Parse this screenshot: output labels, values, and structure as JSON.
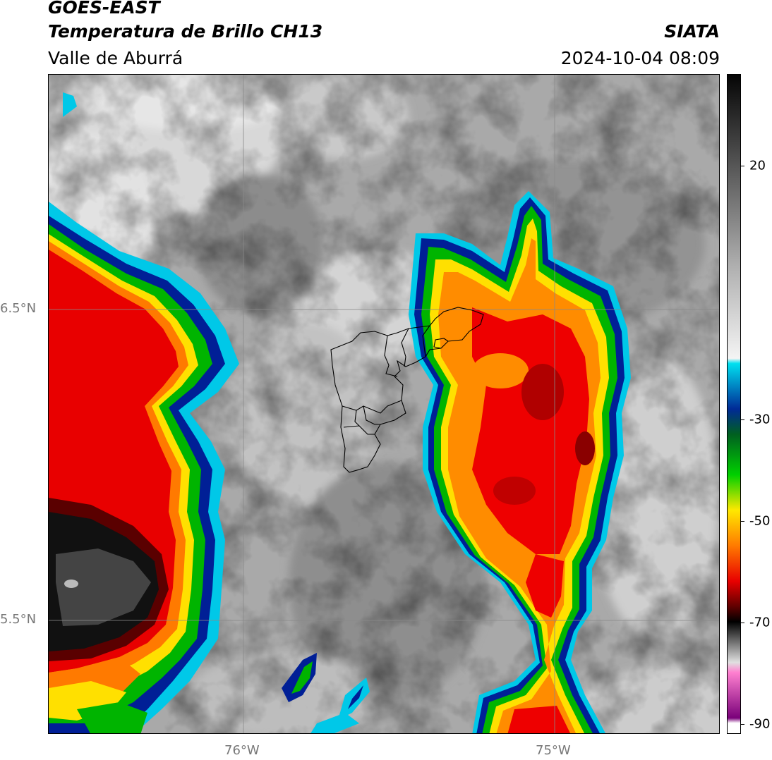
{
  "header": {
    "title_line1": "GOES-EAST",
    "title_line2": "Temperatura de Brillo CH13",
    "region": "Valle de Aburrá",
    "source": "SIATA",
    "datetime": "2024-10-04 08:09"
  },
  "map": {
    "lat_labels": [
      "6.5°N",
      "5.5°N"
    ],
    "lon_labels": [
      "76°W",
      "75°W"
    ],
    "lat_values": [
      6.5,
      5.5
    ],
    "lon_values": [
      -76,
      -75
    ],
    "extent": {
      "lon_min": -76.63,
      "lon_max": -74.47,
      "lat_min": 5.13,
      "lat_max": 7.25
    },
    "base_color": "#a8a8a8",
    "cold_cloud_colors": [
      "#00c8e8",
      "#001a90",
      "#00b000",
      "#ffe000",
      "#ff8c00",
      "#ee0000",
      "#7a0000",
      "#111111"
    ]
  },
  "colorbar": {
    "tick_labels": [
      "20",
      "-30",
      "-50",
      "-70",
      "-90"
    ],
    "tick_values": [
      20,
      -30,
      -50,
      -70,
      -90
    ],
    "range": [
      -92,
      38
    ],
    "stops": [
      {
        "v": 38,
        "c": "#050505"
      },
      {
        "v": 0,
        "c": "#b0b0b0"
      },
      {
        "v": -18,
        "c": "#f4f4f4"
      },
      {
        "v": -19,
        "c": "#00e0f0"
      },
      {
        "v": -28,
        "c": "#002a96"
      },
      {
        "v": -33,
        "c": "#006020"
      },
      {
        "v": -41,
        "c": "#00d000"
      },
      {
        "v": -48,
        "c": "#ffe800"
      },
      {
        "v": -55,
        "c": "#ff7a00"
      },
      {
        "v": -62,
        "c": "#e80000"
      },
      {
        "v": -67,
        "c": "#600000"
      },
      {
        "v": -70,
        "c": "#000000"
      },
      {
        "v": -78,
        "c": "#e0e0e0"
      },
      {
        "v": -80,
        "c": "#ff80d0"
      },
      {
        "v": -89,
        "c": "#7a007a"
      },
      {
        "v": -90,
        "c": "#ffffff"
      }
    ]
  }
}
